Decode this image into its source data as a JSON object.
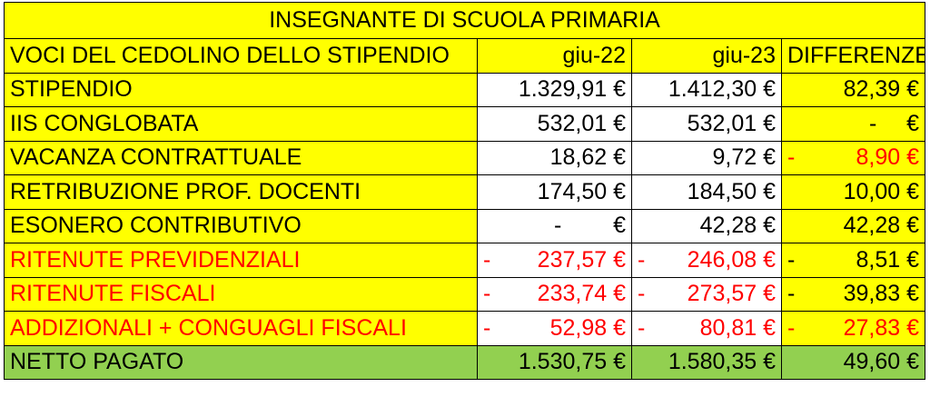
{
  "title": "INSEGNANTE DI SCUOLA PRIMARIA",
  "header": {
    "col0": "VOCI DEL CEDOLINO DELLO STIPENDIO",
    "col1": "giu-22",
    "col2": "giu-23",
    "col3": "DIFFERENZE"
  },
  "colors": {
    "yellow": "#ffff00",
    "green": "#92d050",
    "red": "#ff0000"
  },
  "rows": [
    {
      "label": "STIPENDIO",
      "a": "1.329,91 €",
      "b": "1.412,30 €",
      "d": "82,39 €"
    },
    {
      "label": "IIS CONGLOBATA",
      "a": "532,01 €",
      "b": "532,01 €",
      "d_minus": "-",
      "d": "€"
    },
    {
      "label": "VACANZA CONTRATTUALE",
      "a": "18,62 €",
      "b": "9,72 €",
      "d_minus": "-",
      "d": "8,90 €"
    },
    {
      "label": "RETRIBUZIONE PROF. DOCENTI",
      "a": "174,50 €",
      "b": "184,50 €",
      "d": "10,00 €"
    },
    {
      "label": "ESONERO CONTRIBUTIVO",
      "a_minus": "-",
      "a": "€",
      "b": "42,28 €",
      "d": "42,28 €"
    },
    {
      "label": "RITENUTE PREVIDENZIALI",
      "a_minus": "-",
      "a": "237,57 €",
      "b_minus": "-",
      "b": "246,08 €",
      "d_minus": "-",
      "d": "8,51 €"
    },
    {
      "label": "RITENUTE FISCALI",
      "a_minus": "-",
      "a": "233,74 €",
      "b_minus": "-",
      "b": "273,57 €",
      "d_minus": "-",
      "d": "39,83 €"
    },
    {
      "label": "ADDIZIONALI + CONGUAGLI FISCALI",
      "a_minus": "-",
      "a": "52,98 €",
      "b_minus": "-",
      "b": "80,81 €",
      "d_minus": "-",
      "d": "27,83 €"
    },
    {
      "label": "NETTO PAGATO",
      "a": "1.530,75 €",
      "b": "1.580,35 €",
      "d": "49,60 €"
    }
  ]
}
